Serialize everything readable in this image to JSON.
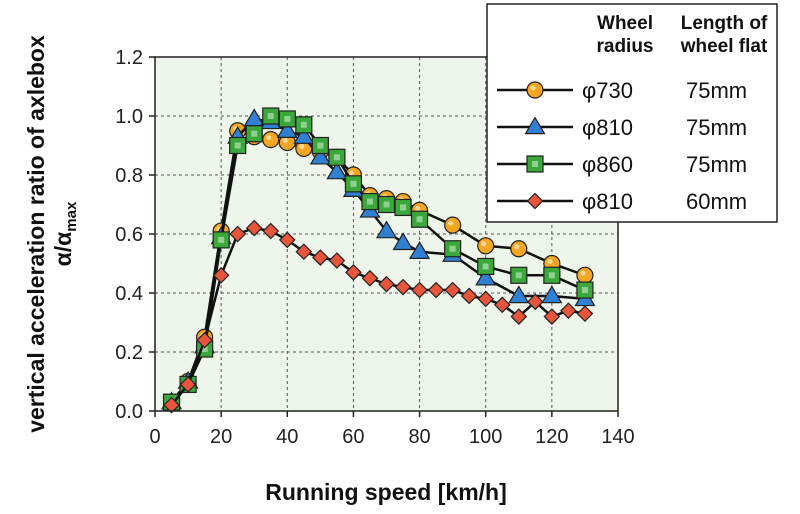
{
  "chart_data": {
    "type": "line",
    "title": "",
    "xlabel": "Running speed [km/h]",
    "ylabel_line1": "vertical acceleration ratio of axlebox",
    "ylabel_line2_main": "α/α",
    "ylabel_line2_sub": "max",
    "xlim": [
      0,
      140
    ],
    "ylim": [
      0,
      1.2
    ],
    "x_ticks": [
      "0",
      "20",
      "40",
      "60",
      "80",
      "100",
      "120",
      "140"
    ],
    "y_ticks": [
      "0.0",
      "0.2",
      "0.4",
      "0.6",
      "0.8",
      "1.0",
      "1.2"
    ],
    "grid": true,
    "legend_placement": "top-right",
    "legend": {
      "header_col1_line1": "Wheel",
      "header_col1_line2": "radius",
      "header_col2_line1": "Length of",
      "header_col2_line2": "wheel flat"
    },
    "series": [
      {
        "radius": "φ730",
        "flat": "75mm",
        "marker": "circle",
        "color": "#f5a623",
        "x": [
          5,
          10,
          15,
          20,
          25,
          30,
          35,
          40,
          45,
          50,
          55,
          60,
          65,
          70,
          75,
          80,
          90,
          100,
          110,
          120,
          130
        ],
        "y": [
          0.03,
          0.1,
          0.25,
          0.61,
          0.95,
          0.93,
          0.92,
          0.91,
          0.89,
          0.88,
          0.86,
          0.8,
          0.73,
          0.72,
          0.71,
          0.68,
          0.63,
          0.56,
          0.55,
          0.5,
          0.46
        ]
      },
      {
        "radius": "φ810",
        "flat": "75mm",
        "marker": "triangle",
        "color": "#2f7fd3",
        "x": [
          5,
          10,
          15,
          20,
          25,
          30,
          35,
          40,
          45,
          50,
          55,
          60,
          65,
          70,
          75,
          80,
          90,
          100,
          110,
          120,
          130
        ],
        "y": [
          0.03,
          0.1,
          0.22,
          0.59,
          0.93,
          0.99,
          0.98,
          0.95,
          0.93,
          0.86,
          0.81,
          0.75,
          0.68,
          0.61,
          0.57,
          0.54,
          0.53,
          0.45,
          0.39,
          0.39,
          0.38
        ]
      },
      {
        "radius": "φ860",
        "flat": "75mm",
        "marker": "square",
        "color": "#3aa83a",
        "x": [
          5,
          10,
          15,
          20,
          25,
          30,
          35,
          40,
          45,
          50,
          55,
          60,
          65,
          70,
          75,
          80,
          90,
          100,
          110,
          120,
          130
        ],
        "y": [
          0.03,
          0.09,
          0.21,
          0.58,
          0.9,
          0.94,
          1.0,
          0.99,
          0.97,
          0.9,
          0.86,
          0.77,
          0.71,
          0.7,
          0.69,
          0.65,
          0.55,
          0.49,
          0.46,
          0.46,
          0.41
        ]
      },
      {
        "radius": "φ810",
        "flat": "60mm",
        "marker": "diamond",
        "color": "#e8553a",
        "x": [
          5,
          10,
          15,
          20,
          25,
          30,
          35,
          40,
          45,
          50,
          55,
          60,
          65,
          70,
          75,
          80,
          85,
          90,
          95,
          100,
          105,
          110,
          115,
          120,
          125,
          130
        ],
        "y": [
          0.02,
          0.09,
          0.24,
          0.46,
          0.6,
          0.62,
          0.61,
          0.58,
          0.54,
          0.52,
          0.51,
          0.47,
          0.45,
          0.43,
          0.42,
          0.41,
          0.41,
          0.41,
          0.39,
          0.38,
          0.36,
          0.32,
          0.37,
          0.32,
          0.34,
          0.33
        ]
      }
    ]
  }
}
